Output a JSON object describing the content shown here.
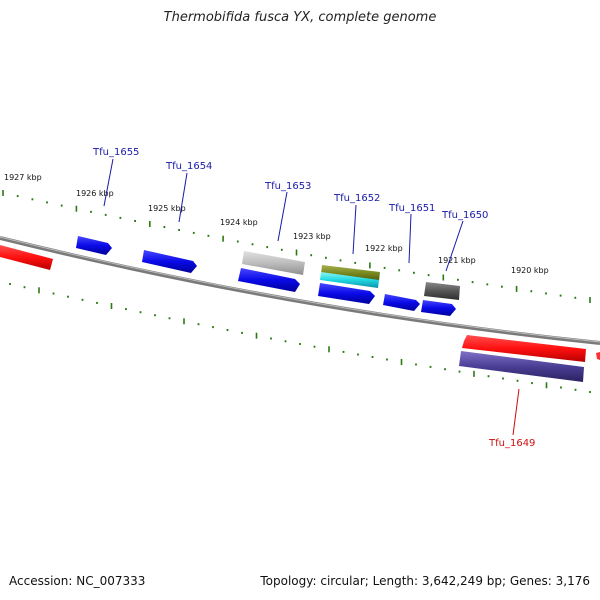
{
  "title": "Thermobifida fusca YX, complete genome",
  "footer": {
    "accession": "Accession: NC_007333",
    "summary": "Topology: circular; Length: 3,642,249 bp; Genes: 3,176"
  },
  "colors": {
    "blue_gene": "#1010e0",
    "red_gene": "#ff1010",
    "tick": "#2a7a12",
    "backbone": "#808080",
    "label_blue": "#1a1aa8",
    "label_red": "#cc1010"
  },
  "kbp_labels": [
    "1927 kbp",
    "1926 kbp",
    "1925 kbp",
    "1924 kbp",
    "1923 kbp",
    "1922 kbp",
    "1921 kbp",
    "1920 kbp"
  ],
  "gene_labels": [
    "Tfu_1655",
    "Tfu_1654",
    "Tfu_1653",
    "Tfu_1652",
    "Tfu_1651",
    "Tfu_1650",
    "Tfu_1649"
  ]
}
